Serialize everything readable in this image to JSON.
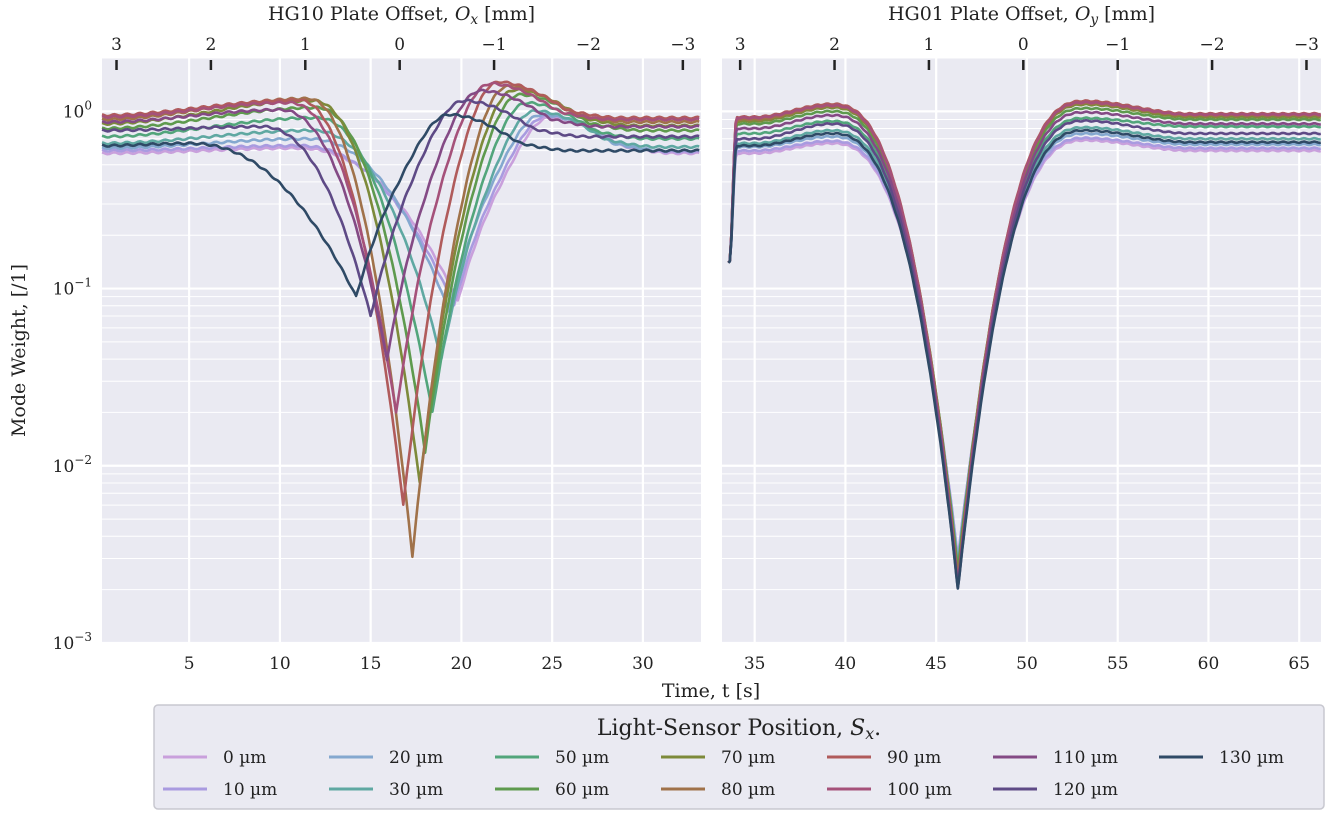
{
  "chart_data": {
    "type": "line",
    "ylabel": "Mode Weight, [/1]",
    "xlabel": "Time, t [s]",
    "yscale": "log",
    "ylim": [
      0.001,
      2.0
    ],
    "grid": true,
    "panels": [
      {
        "title": "HG10 Plate Offset, O_x [mm]",
        "xlim": [
          0.2,
          33.2
        ],
        "x_ticks": [
          "5",
          "10",
          "15",
          "20",
          "25",
          "30"
        ],
        "top_ticks": [
          {
            "label": "3",
            "t": 1.0
          },
          {
            "label": "2",
            "t": 6.2
          },
          {
            "label": "1",
            "t": 11.4
          },
          {
            "label": "0",
            "t": 16.6
          },
          {
            "label": "−1",
            "t": 21.8
          },
          {
            "label": "−2",
            "t": 27.0
          },
          {
            "label": "−3",
            "t": 32.2
          }
        ]
      },
      {
        "title": "HG01 Plate Offset, O_y [mm]",
        "xlim": [
          33.2,
          66.2
        ],
        "x_ticks": [
          "35",
          "40",
          "45",
          "50",
          "55",
          "60",
          "65"
        ],
        "top_ticks": [
          {
            "label": "3",
            "t": 34.2
          },
          {
            "label": "2",
            "t": 39.4
          },
          {
            "label": "1",
            "t": 44.6
          },
          {
            "label": "0",
            "t": 49.8
          },
          {
            "label": "−1",
            "t": 55.0
          },
          {
            "label": "−2",
            "t": 60.2
          },
          {
            "label": "−3",
            "t": 65.4
          }
        ]
      }
    ],
    "y_ticks": [
      {
        "base": "10",
        "exp": "0",
        "value": 1
      },
      {
        "base": "10",
        "exp": "−1",
        "value": 0.1
      },
      {
        "base": "10",
        "exp": "−2",
        "value": 0.01
      },
      {
        "base": "10",
        "exp": "−3",
        "value": 0.001
      }
    ],
    "legend": {
      "title": "Light-Sensor Position, S_x.",
      "placement": "bottom"
    },
    "series": [
      {
        "name": "0 µm",
        "color": "#c9a0dc",
        "hg10": {
          "base": 0.58,
          "peak_t": 11.0,
          "peak": 0.62,
          "min_t": 19.8,
          "min": 0.085,
          "end": 0.58
        },
        "hg01": {
          "plateau": 0.58,
          "peak": 0.66,
          "min": 0.003,
          "end": 0.6
        }
      },
      {
        "name": "10 µm",
        "color": "#a99be0",
        "hg10": {
          "base": 0.6,
          "peak_t": 11.0,
          "peak": 0.64,
          "min_t": 19.6,
          "min": 0.08,
          "end": 0.59
        },
        "hg01": {
          "plateau": 0.6,
          "peak": 0.68,
          "min": 0.003,
          "end": 0.62
        }
      },
      {
        "name": "20 µm",
        "color": "#84a8cf",
        "hg10": {
          "base": 0.62,
          "peak_t": 11.5,
          "peak": 0.7,
          "min_t": 19.3,
          "min": 0.075,
          "end": 0.6
        },
        "hg01": {
          "plateau": 0.63,
          "peak": 0.72,
          "min": 0.0028,
          "end": 0.65
        }
      },
      {
        "name": "30 µm",
        "color": "#5fa8a2",
        "hg10": {
          "base": 0.66,
          "peak_t": 11.8,
          "peak": 0.78,
          "min_t": 18.9,
          "min": 0.04,
          "end": 0.63
        },
        "hg01": {
          "plateau": 0.66,
          "peak": 0.78,
          "min": 0.0027,
          "end": 0.7
        }
      },
      {
        "name": "50 µm",
        "color": "#52a57b",
        "hg10": {
          "base": 0.72,
          "peak_t": 12.0,
          "peak": 0.92,
          "min_t": 18.4,
          "min": 0.02,
          "end": 0.7
        },
        "hg01": {
          "plateau": 0.75,
          "peak": 0.88,
          "min": 0.0026,
          "end": 0.82
        }
      },
      {
        "name": "60 µm",
        "color": "#5e9a4e",
        "hg10": {
          "base": 0.8,
          "peak_t": 12.0,
          "peak": 1.05,
          "min_t": 18.0,
          "min": 0.012,
          "end": 0.78
        },
        "hg01": {
          "plateau": 0.85,
          "peak": 1.0,
          "min": 0.0025,
          "end": 0.9
        }
      },
      {
        "name": "70 µm",
        "color": "#7d8a3a",
        "hg10": {
          "base": 0.85,
          "peak_t": 11.8,
          "peak": 1.15,
          "min_t": 17.7,
          "min": 0.008,
          "end": 0.83
        },
        "hg01": {
          "plateau": 0.88,
          "peak": 1.05,
          "min": 0.0024,
          "end": 0.93
        }
      },
      {
        "name": "80 µm",
        "color": "#a0724a",
        "hg10": {
          "base": 0.9,
          "peak_t": 11.5,
          "peak": 1.18,
          "min_t": 17.3,
          "min": 0.0031,
          "end": 0.87
        },
        "hg01": {
          "plateau": 0.9,
          "peak": 1.07,
          "min": 0.0022,
          "end": 0.95
        }
      },
      {
        "name": "90 µm",
        "color": "#b05b5b",
        "hg10": {
          "base": 0.95,
          "peak_t": 11.0,
          "peak": 1.16,
          "min_t": 16.8,
          "min": 0.006,
          "end": 0.92
        },
        "hg01": {
          "plateau": 0.93,
          "peak": 1.1,
          "min": 0.0022,
          "end": 0.97
        }
      },
      {
        "name": "100 µm",
        "color": "#a5517a",
        "hg10": {
          "base": 0.93,
          "peak_t": 10.5,
          "peak": 1.12,
          "min_t": 16.4,
          "min": 0.02,
          "end": 0.9
        },
        "hg01": {
          "plateau": 0.92,
          "peak": 1.08,
          "min": 0.0021,
          "end": 0.96
        }
      },
      {
        "name": "110 µm",
        "color": "#844a85",
        "hg10": {
          "base": 0.87,
          "peak_t": 10.0,
          "peak": 1.02,
          "min_t": 15.9,
          "min": 0.04,
          "end": 0.82
        },
        "hg01": {
          "plateau": 0.8,
          "peak": 0.95,
          "min": 0.0021,
          "end": 0.85
        }
      },
      {
        "name": "120 µm",
        "color": "#5e4a86",
        "hg10": {
          "base": 0.78,
          "peak_t": 9.0,
          "peak": 0.82,
          "min_t": 15.0,
          "min": 0.07,
          "end": 0.72
        },
        "hg01": {
          "plateau": 0.7,
          "peak": 0.85,
          "min": 0.002,
          "end": 0.75
        }
      },
      {
        "name": "130 µm",
        "color": "#2f4a66",
        "hg10": {
          "base": 0.64,
          "peak_t": 5.0,
          "peak": 0.66,
          "min_t": 14.2,
          "min": 0.09,
          "end": 0.6
        },
        "hg01": {
          "plateau": 0.64,
          "peak": 0.75,
          "min": 0.002,
          "end": 0.67
        }
      }
    ]
  }
}
